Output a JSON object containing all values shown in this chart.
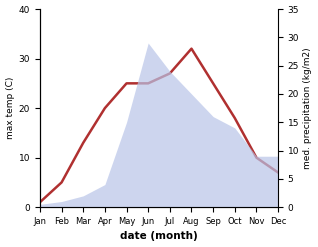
{
  "months": [
    "Jan",
    "Feb",
    "Mar",
    "Apr",
    "May",
    "Jun",
    "Jul",
    "Aug",
    "Sep",
    "Oct",
    "Nov",
    "Dec"
  ],
  "temp_max": [
    1,
    5,
    13,
    20,
    25,
    25,
    27,
    32,
    25,
    18,
    10,
    7
  ],
  "precipitation": [
    0.5,
    1,
    2,
    4,
    15,
    29,
    24,
    20,
    16,
    14,
    9,
    9
  ],
  "temp_color": "#b03030",
  "precip_color_fill": "#b8c4e8",
  "ylabel_left": "max temp (C)",
  "ylabel_right": "med. precipitation (kg/m2)",
  "xlabel": "date (month)",
  "ylim_left": [
    0,
    40
  ],
  "ylim_right": [
    0,
    35
  ],
  "yticks_left": [
    0,
    10,
    20,
    30,
    40
  ],
  "yticks_right": [
    0,
    5,
    10,
    15,
    20,
    25,
    30,
    35
  ],
  "background_color": "#ffffff"
}
